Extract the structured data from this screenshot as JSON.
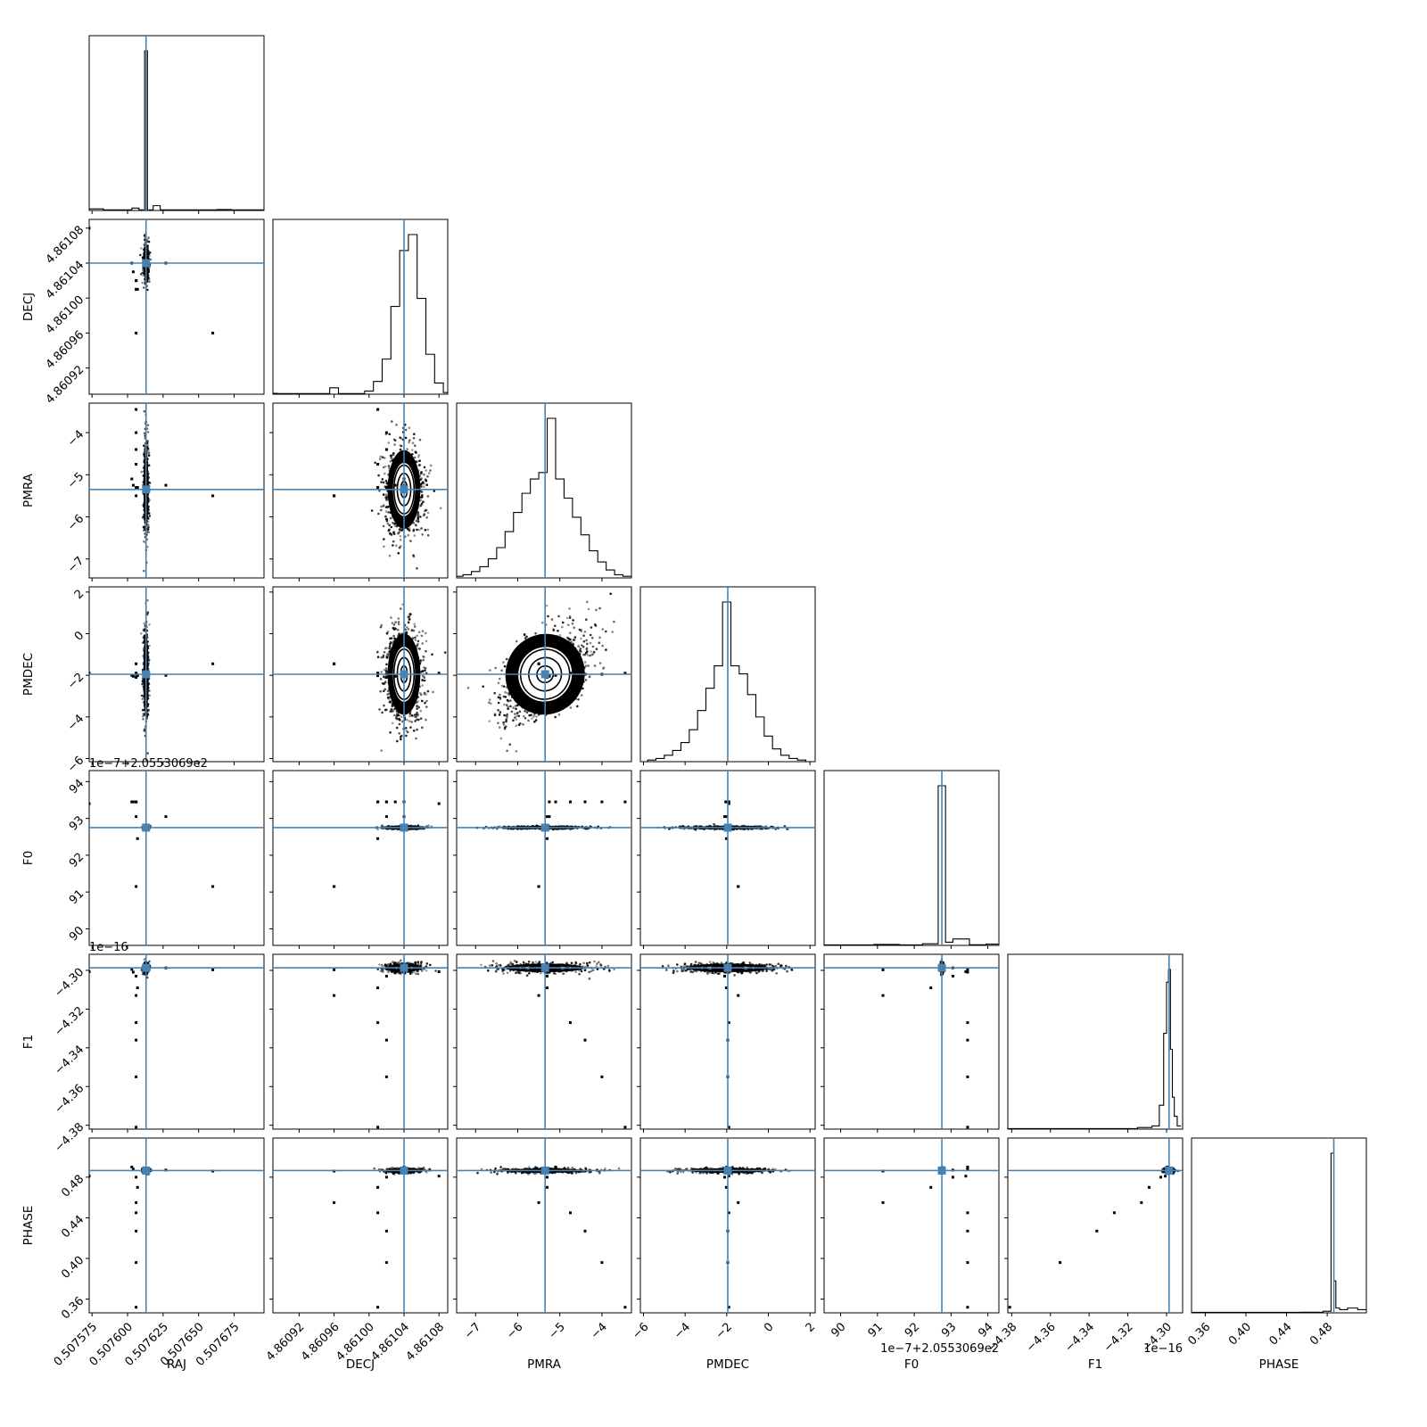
{
  "chart_data": {
    "type": "scatter",
    "subtype": "corner-plot",
    "title": "",
    "params": [
      {
        "name": "RAJ",
        "truth": 0.507613,
        "range": [
          0.507573,
          0.507696
        ],
        "ticks": [
          0.507575,
          0.5076,
          0.507625,
          0.50765,
          0.507675
        ],
        "tick_labels": [
          "0.507575",
          "0.507600",
          "0.507625",
          "0.507650",
          "0.507675"
        ],
        "offset_text": ""
      },
      {
        "name": "DECJ",
        "truth": 4.86104,
        "range": [
          4.86089,
          4.86109
        ],
        "ticks": [
          4.86092,
          4.86096,
          4.861,
          4.86104,
          4.86108
        ],
        "tick_labels": [
          "4.86092",
          "4.86096",
          "4.86100",
          "4.86104",
          "4.86108"
        ],
        "offset_text": ""
      },
      {
        "name": "PMRA",
        "truth": -5.35,
        "range": [
          -7.45,
          -3.3
        ],
        "ticks": [
          -7,
          -6,
          -5,
          -4
        ],
        "tick_labels": [
          "−7",
          "−6",
          "−5",
          "−4"
        ],
        "offset_text": ""
      },
      {
        "name": "PMDEC",
        "truth": -1.95,
        "range": [
          -6.15,
          2.25
        ],
        "ticks": [
          -6,
          -4,
          -2,
          0,
          2
        ],
        "tick_labels": [
          "−6",
          "−4",
          "−2",
          "0",
          "2"
        ],
        "offset_text": ""
      },
      {
        "name": "F0",
        "truth": 92.75,
        "range": [
          89.55,
          94.3
        ],
        "ticks": [
          90,
          91,
          92,
          93,
          94
        ],
        "tick_labels": [
          "90",
          "91",
          "92",
          "93",
          "94"
        ],
        "offset_text": "1e−7+2.0553069e2"
      },
      {
        "name": "F1",
        "truth": -4.2987,
        "range": [
          -4.382,
          -4.2917
        ],
        "ticks": [
          -4.38,
          -4.36,
          -4.34,
          -4.32,
          -4.3
        ],
        "tick_labels": [
          "−4.38",
          "−4.36",
          "−4.34",
          "−4.32",
          "−4.30"
        ],
        "offset_text": "1e−16"
      },
      {
        "name": "PHASE",
        "truth": 0.4865,
        "range": [
          0.3465,
          0.5185
        ],
        "ticks": [
          0.36,
          0.4,
          0.44,
          0.48
        ],
        "tick_labels": [
          "0.36",
          "0.40",
          "0.44",
          "0.48"
        ],
        "offset_text": ""
      }
    ],
    "histograms": [
      {
        "param": "RAJ",
        "bin_edges": [
          0.507573,
          0.507583,
          0.507593,
          0.507603,
          0.507608,
          0.507611,
          0.507612,
          0.507613,
          0.507614,
          0.507615,
          0.507618,
          0.507623,
          0.507633,
          0.507643,
          0.507653,
          0.507663,
          0.507673,
          0.507696
        ],
        "counts": [
          0.01,
          0.004,
          0.004,
          0.015,
          0.004,
          0,
          1.0,
          1.0,
          0,
          0.004,
          0.03,
          0.004,
          0.004,
          0.004,
          0.004,
          0.006,
          0.004
        ]
      },
      {
        "param": "DECJ",
        "centers": [
          4.86089,
          4.8609,
          4.86091,
          4.86092,
          4.86093,
          4.86094,
          4.86095,
          4.86096,
          4.86097,
          4.86098,
          4.86099,
          4.861,
          4.86101,
          4.86102,
          4.86103,
          4.86104,
          4.86105,
          4.86106,
          4.86107,
          4.86108,
          4.86109
        ],
        "counts": [
          0.005,
          0.004,
          0.004,
          0.004,
          0.004,
          0.004,
          0.004,
          0.04,
          0.004,
          0.004,
          0.004,
          0.02,
          0.08,
          0.22,
          0.55,
          0.9,
          1.0,
          0.6,
          0.25,
          0.07,
          0.01
        ]
      },
      {
        "param": "PMRA",
        "centers": [
          -7.4,
          -7.2,
          -7.0,
          -6.8,
          -6.6,
          -6.4,
          -6.2,
          -6.0,
          -5.8,
          -5.6,
          -5.4,
          -5.2,
          -5.0,
          -4.8,
          -4.6,
          -4.4,
          -4.2,
          -4.0,
          -3.8,
          -3.6,
          -3.4
        ],
        "counts": [
          0.01,
          0.02,
          0.04,
          0.07,
          0.12,
          0.19,
          0.29,
          0.41,
          0.53,
          0.62,
          0.66,
          1.0,
          0.62,
          0.5,
          0.38,
          0.27,
          0.17,
          0.1,
          0.05,
          0.02,
          0.01
        ]
      },
      {
        "param": "PMDEC",
        "centers": [
          -6.0,
          -5.6,
          -5.2,
          -4.8,
          -4.4,
          -4.0,
          -3.6,
          -3.2,
          -2.8,
          -2.4,
          -2.0,
          -1.6,
          -1.2,
          -0.8,
          -0.4,
          0.0,
          0.4,
          0.8,
          1.2,
          1.6,
          2.0
        ],
        "counts": [
          0.0,
          0.01,
          0.02,
          0.04,
          0.07,
          0.12,
          0.2,
          0.32,
          0.46,
          0.6,
          1.0,
          0.6,
          0.55,
          0.42,
          0.28,
          0.16,
          0.08,
          0.04,
          0.02,
          0.01,
          0.0
        ]
      },
      {
        "param": "F0",
        "centers": [
          89.7,
          90.5,
          91.3,
          91.9,
          92.55,
          92.75,
          92.95,
          93.15,
          93.3,
          93.7,
          94.2
        ],
        "counts": [
          0.003,
          0.003,
          0.006,
          0.003,
          0.01,
          1.0,
          0.02,
          0.04,
          0.04,
          0.004,
          0.008
        ]
      },
      {
        "param": "F1",
        "centers": [
          -4.38,
          -4.36,
          -4.34,
          -4.32,
          -4.31,
          -4.305,
          -4.3025,
          -4.3005,
          -4.2995,
          -4.2985,
          -4.2975,
          -4.2965,
          -4.2955,
          -4.2935
        ],
        "counts": [
          0.003,
          0.003,
          0.003,
          0.003,
          0.01,
          0.02,
          0.15,
          0.6,
          0.92,
          1.0,
          0.5,
          0.2,
          0.08,
          0.02
        ]
      },
      {
        "param": "PHASE",
        "centers": [
          0.35,
          0.38,
          0.41,
          0.44,
          0.47,
          0.482,
          0.4855,
          0.4875,
          0.4895,
          0.495,
          0.505,
          0.515
        ],
        "counts": [
          0.003,
          0.003,
          0.003,
          0.003,
          0.004,
          0.01,
          1.0,
          0.2,
          0.03,
          0.02,
          0.03,
          0.02
        ]
      }
    ],
    "truths_color": "#4682b4",
    "contour_color": "#000000"
  }
}
